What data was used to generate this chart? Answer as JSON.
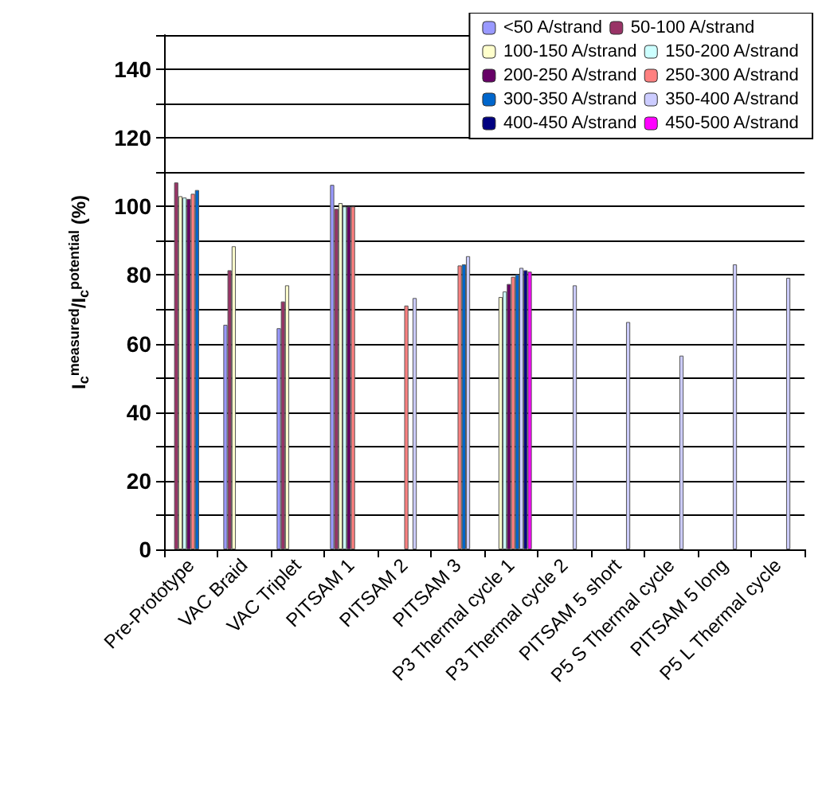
{
  "chart_data": {
    "type": "bar",
    "ylabel": "I$_{c}$$^{measured}$/I$_{c}$$^{potential}$ (%)",
    "categories": [
      "Pre-Prototype",
      "VAC Braid",
      "VAC Triplet",
      "PITSAM 1",
      "PITSAM 2",
      "PITSAM 3",
      "P3 Thermal cycle 1",
      "P3 Thermal cycle 2",
      "PITSAM 5 short",
      "P5 S Thermal cycle",
      "PITSAM 5 long",
      "P5 L Thermal cycle"
    ],
    "series": [
      {
        "name": "<50 A/strand",
        "color": "#9999ff",
        "values": [
          null,
          65.5,
          64.5,
          106.3,
          null,
          null,
          null,
          null,
          null,
          null,
          null,
          null
        ]
      },
      {
        "name": "50-100 A/strand",
        "color": "#993366",
        "values": [
          107,
          81.4,
          72.3,
          99.3,
          null,
          null,
          null,
          null,
          null,
          null,
          null,
          null
        ]
      },
      {
        "name": "100-150 A/strand",
        "color": "#ffffcc",
        "values": [
          103,
          88.4,
          77,
          101,
          null,
          null,
          73.6,
          null,
          null,
          null,
          null,
          null
        ]
      },
      {
        "name": "150-200 A/strand",
        "color": "#ccffff",
        "values": [
          102.6,
          null,
          null,
          100,
          null,
          null,
          75.2,
          null,
          null,
          null,
          null,
          null
        ]
      },
      {
        "name": "200-250 A/strand",
        "color": "#660066",
        "values": [
          102.2,
          null,
          null,
          100,
          null,
          null,
          77.4,
          null,
          null,
          null,
          null,
          null
        ]
      },
      {
        "name": "250-300 A/strand",
        "color": "#ff8080",
        "values": [
          103.7,
          null,
          null,
          100,
          71.1,
          82.8,
          79.5,
          null,
          null,
          null,
          null,
          null
        ]
      },
      {
        "name": "300-350 A/strand",
        "color": "#0066cc",
        "values": [
          104.8,
          null,
          null,
          null,
          null,
          83.1,
          80.2,
          null,
          null,
          null,
          null,
          null
        ]
      },
      {
        "name": "350-400 A/strand",
        "color": "#ccccff",
        "values": [
          null,
          null,
          null,
          null,
          73.3,
          85.5,
          82.1,
          77,
          66.3,
          56.5,
          83.1,
          79.2
        ]
      },
      {
        "name": "400-450 A/strand",
        "color": "#000080",
        "values": [
          null,
          null,
          null,
          null,
          null,
          null,
          81.4,
          null,
          null,
          null,
          null,
          null
        ]
      },
      {
        "name": "450-500 A/strand",
        "color": "#ff00ff",
        "values": [
          null,
          null,
          null,
          null,
          null,
          null,
          81,
          null,
          null,
          null,
          null,
          null
        ]
      }
    ],
    "ylim": [
      0,
      150
    ],
    "yticks": [
      0,
      {
        "value": 10,
        "label": null
      },
      20,
      {
        "value": 30,
        "label": null
      },
      40,
      {
        "value": 50,
        "label": null
      },
      60,
      {
        "value": 70,
        "label": null
      },
      80,
      {
        "value": 90,
        "label": null
      },
      100,
      {
        "value": 110,
        "label": null
      },
      120,
      {
        "value": 130,
        "label": null
      },
      140,
      {
        "value": 150,
        "label": null
      }
    ],
    "grid": "y",
    "legend": "top right"
  }
}
